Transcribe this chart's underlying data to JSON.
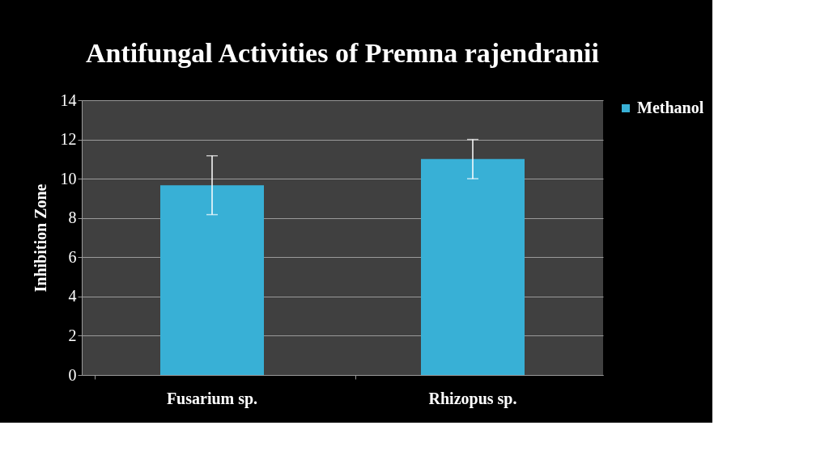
{
  "chart_data": {
    "type": "bar",
    "title": "Antifungal Activities of Premna rajendranii",
    "ylabel": "Inhibition Zone",
    "categories": [
      "Fusarium sp.",
      "Rhizopus sp."
    ],
    "series": [
      {
        "name": "Methanol",
        "color": "#38b0d6",
        "values": [
          9.67,
          11
        ],
        "errors": [
          1.5,
          1
        ]
      }
    ],
    "ylim": [
      0,
      14
    ],
    "yticks": [
      0,
      2,
      4,
      6,
      8,
      10,
      12,
      14
    ],
    "grid": "y",
    "legend": "right"
  }
}
